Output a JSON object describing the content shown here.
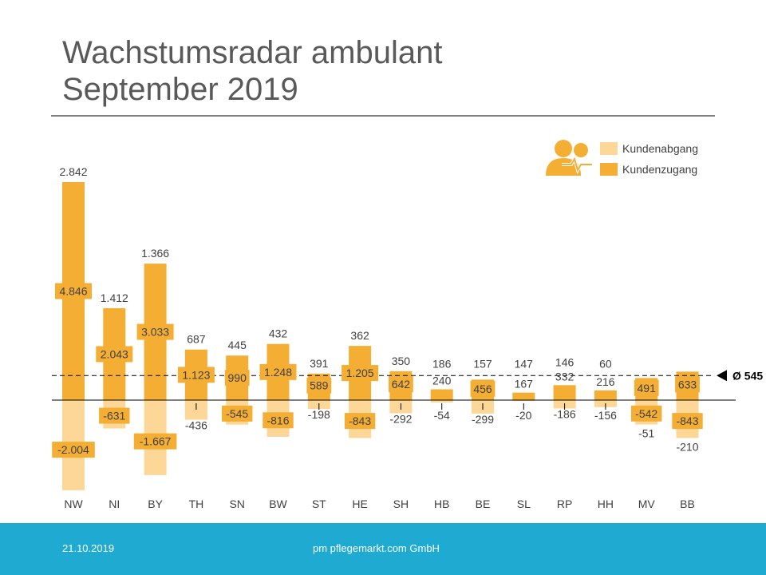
{
  "title": {
    "line1": "Wachstumsradar ambulant",
    "line2": "September 2019"
  },
  "legend": {
    "abgang_label": "Kundenabgang",
    "zugang_label": "Kundenzugang",
    "icon": "caregiver-heartbeat-icon"
  },
  "colors": {
    "zugang": "#f5ae34",
    "abgang": "#fcd797",
    "label_box": "#f5ae34",
    "text": "#404040",
    "title": "#595959",
    "footer": "#1faad2"
  },
  "footer": {
    "date": "21.10.2019",
    "company": "pm pflegemarkt.com GmbH"
  },
  "chart_data": {
    "type": "bar",
    "categories": [
      "NW",
      "NI",
      "BY",
      "TH",
      "SN",
      "BW",
      "ST",
      "HE",
      "SH",
      "HB",
      "BE",
      "SL",
      "RP",
      "HH",
      "MV",
      "BB"
    ],
    "series": [
      {
        "name": "Kundenzugang",
        "values": [
          4846,
          2043,
          3033,
          1123,
          990,
          1248,
          589,
          1205,
          642,
          240,
          456,
          167,
          332,
          216,
          491,
          633
        ],
        "labels": [
          "4.846",
          "2.043",
          "3.033",
          "1.123",
          "990",
          "1.248",
          "589",
          "1.205",
          "642",
          "240",
          "456",
          "167",
          "332",
          "216",
          "491",
          "633"
        ]
      },
      {
        "name": "Kundenabgang",
        "values": [
          -2004,
          -631,
          -1667,
          -436,
          -545,
          -816,
          -198,
          -843,
          -292,
          -54,
          -299,
          -20,
          -186,
          -156,
          -542,
          -843
        ],
        "labels": [
          "-2.004",
          "-631",
          "-1.667",
          "-436",
          "-545",
          "-816",
          "-198",
          "-843",
          "-292",
          "-54",
          "-299",
          "-20",
          "-186",
          "-156",
          "-542",
          "-843"
        ]
      }
    ],
    "net_values": [
      2842,
      1412,
      1366,
      687,
      445,
      432,
      391,
      362,
      350,
      186,
      157,
      147,
      146,
      60,
      -51,
      -210
    ],
    "net_labels": [
      "2.842",
      "1.412",
      "1.366",
      "687",
      "445",
      "432",
      "391",
      "362",
      "350",
      "186",
      "157",
      "147",
      "146",
      "60",
      "-51",
      "-210"
    ],
    "average": {
      "value": 545,
      "label": "Ø 545"
    },
    "grid": false,
    "legend_position": "top-right"
  }
}
